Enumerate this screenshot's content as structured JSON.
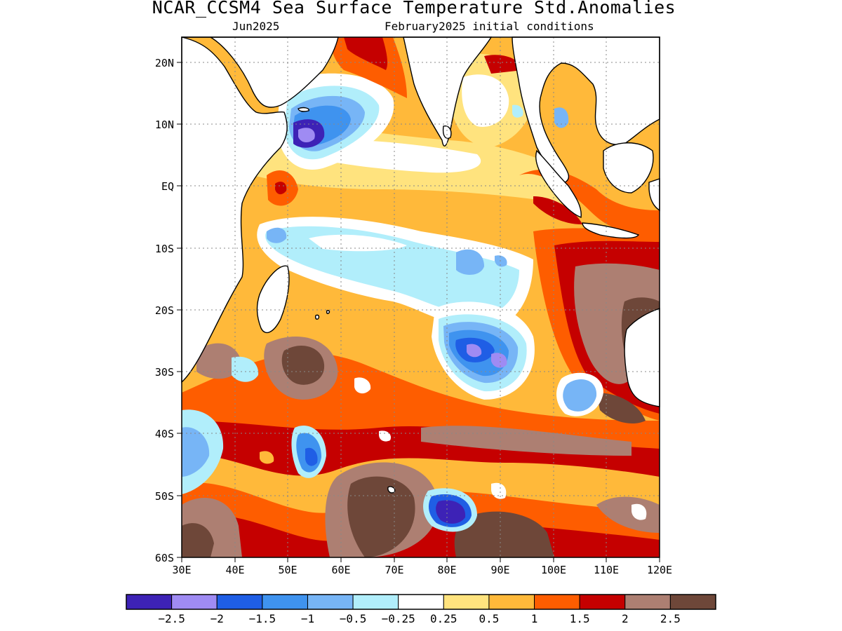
{
  "title": "NCAR_CCSM4 Sea Surface Temperature Std.Anomalies",
  "subtitle_left": "Jun2025",
  "subtitle_right": "February2025 initial conditions",
  "lat_labels": [
    "20N",
    "10N",
    "EQ",
    "10S",
    "20S",
    "30S",
    "40S",
    "50S",
    "60S"
  ],
  "lon_labels": [
    "30E",
    "40E",
    "50E",
    "60E",
    "70E",
    "80E",
    "90E",
    "100E",
    "110E",
    "120E"
  ],
  "colorbar": {
    "colors": [
      "#3d22b6",
      "#9f8bf3",
      "#1f5ee5",
      "#3f93ef",
      "#77b5f6",
      "#b1eefb",
      "#ffffff",
      "#ffe37e",
      "#ffb93a",
      "#fe5d00",
      "#c50000",
      "#ad7f72",
      "#6e4739"
    ],
    "labels": [
      "−2.5",
      "−2",
      "−1.5",
      "−1",
      "−0.5",
      "−0.25",
      "0.25",
      "0.5",
      "1",
      "1.5",
      "2",
      "2.5"
    ]
  }
}
